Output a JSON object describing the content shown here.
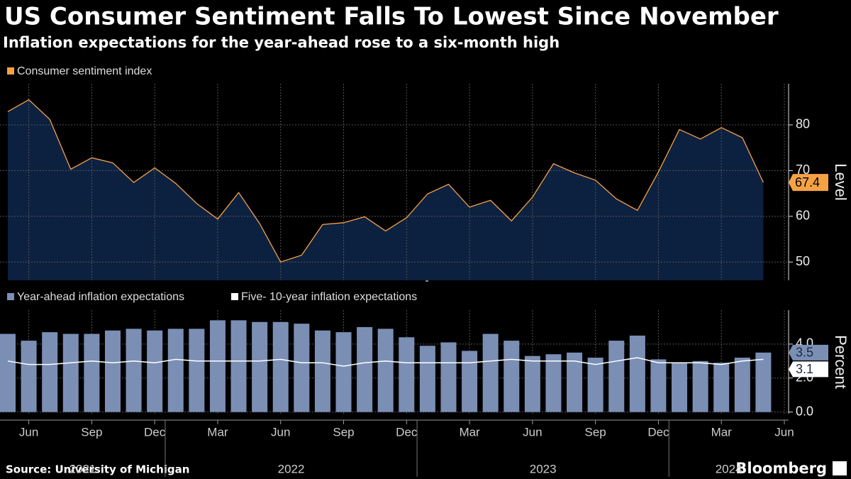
{
  "source": "Source: University of Michigan",
  "brand": "Bloomberg",
  "chart_data": [
    {
      "type": "area",
      "title": "US Consumer Sentiment Falls To Lowest Since November",
      "subtitle": "Inflation expectations for the year-ahead rose to a six-month high",
      "ylabel": "Level",
      "x": [
        "2021-05",
        "2021-06",
        "2021-07",
        "2021-08",
        "2021-09",
        "2021-10",
        "2021-11",
        "2021-12",
        "2022-01",
        "2022-02",
        "2022-03",
        "2022-04",
        "2022-05",
        "2022-06",
        "2022-07",
        "2022-08",
        "2022-09",
        "2022-10",
        "2022-11",
        "2022-12",
        "2023-01",
        "2023-02",
        "2023-03",
        "2023-04",
        "2023-05",
        "2023-06",
        "2023-07",
        "2023-08",
        "2023-09",
        "2023-10",
        "2023-11",
        "2023-12",
        "2024-01",
        "2024-02",
        "2024-03",
        "2024-04",
        "2024-05"
      ],
      "series": [
        {
          "name": "Consumer sentiment index",
          "color": "#f5a245",
          "fill": "#0c2140",
          "values": [
            82.9,
            85.5,
            81.2,
            70.3,
            72.8,
            71.7,
            67.4,
            70.6,
            67.2,
            62.8,
            59.4,
            65.2,
            58.4,
            50.0,
            51.5,
            58.2,
            58.6,
            59.9,
            56.8,
            59.7,
            64.9,
            67.0,
            62.0,
            63.5,
            59.0,
            64.2,
            71.5,
            69.5,
            67.9,
            63.8,
            61.3,
            69.7,
            79.0,
            76.9,
            79.4,
            77.2,
            67.4
          ]
        }
      ],
      "ylim": [
        46,
        89
      ],
      "yticks": [
        50,
        60,
        70,
        80
      ],
      "grid": true
    },
    {
      "type": "bar",
      "ylabel": "Percent",
      "x": [
        "2021-05",
        "2021-06",
        "2021-07",
        "2021-08",
        "2021-09",
        "2021-10",
        "2021-11",
        "2021-12",
        "2022-01",
        "2022-02",
        "2022-03",
        "2022-04",
        "2022-05",
        "2022-06",
        "2022-07",
        "2022-08",
        "2022-09",
        "2022-10",
        "2022-11",
        "2022-12",
        "2023-01",
        "2023-02",
        "2023-03",
        "2023-04",
        "2023-05",
        "2023-06",
        "2023-07",
        "2023-08",
        "2023-09",
        "2023-10",
        "2023-11",
        "2023-12",
        "2024-01",
        "2024-02",
        "2024-03",
        "2024-04",
        "2024-05"
      ],
      "series": [
        {
          "name": "Year-ahead inflation expectations",
          "type": "bar",
          "color": "#7b8fb5",
          "values": [
            4.6,
            4.2,
            4.7,
            4.6,
            4.6,
            4.8,
            4.9,
            4.8,
            4.9,
            4.9,
            5.4,
            5.4,
            5.3,
            5.3,
            5.2,
            4.8,
            4.7,
            5.0,
            4.9,
            4.4,
            3.9,
            4.1,
            3.6,
            4.6,
            4.2,
            3.3,
            3.4,
            3.5,
            3.2,
            4.2,
            4.5,
            3.1,
            2.9,
            3.0,
            2.9,
            3.2,
            3.5
          ]
        },
        {
          "name": "Five- 10-year inflation expectations",
          "type": "line",
          "color": "#ffffff",
          "values": [
            3.0,
            2.8,
            2.8,
            2.9,
            3.0,
            2.9,
            3.0,
            2.9,
            3.1,
            3.0,
            3.0,
            3.0,
            3.0,
            3.1,
            2.9,
            2.9,
            2.7,
            2.9,
            3.0,
            2.9,
            2.9,
            2.9,
            2.9,
            3.0,
            3.1,
            3.0,
            3.0,
            3.0,
            2.8,
            3.0,
            3.2,
            2.9,
            2.9,
            2.9,
            2.8,
            3.0,
            3.1
          ]
        }
      ],
      "ylim": [
        -0.1,
        6
      ],
      "yticks": [
        {
          "value": 0,
          "label": "0.0"
        },
        {
          "value": 2,
          "label": "2.0"
        },
        {
          "value": 4,
          "label": "4.0"
        }
      ],
      "xlim": [
        "2021-05",
        "2024-06"
      ],
      "xticks": [
        {
          "value": "2021-06",
          "label": "Jun"
        },
        {
          "value": "2021-09",
          "label": "Sep"
        },
        {
          "value": "2021-12",
          "label": "Dec"
        },
        {
          "value": "2022-03",
          "label": "Mar"
        },
        {
          "value": "2022-06",
          "label": "Jun"
        },
        {
          "value": "2022-09",
          "label": "Sep"
        },
        {
          "value": "2022-12",
          "label": "Dec"
        },
        {
          "value": "2023-03",
          "label": "Mar"
        },
        {
          "value": "2023-06",
          "label": "Jun"
        },
        {
          "value": "2023-09",
          "label": "Sep"
        },
        {
          "value": "2023-12",
          "label": "Dec"
        },
        {
          "value": "2024-03",
          "label": "Mar"
        },
        {
          "value": "2024-06",
          "label": "Jun"
        }
      ],
      "year_labels": [
        "2021",
        "2022",
        "2023",
        "2024"
      ],
      "grid": true
    }
  ]
}
